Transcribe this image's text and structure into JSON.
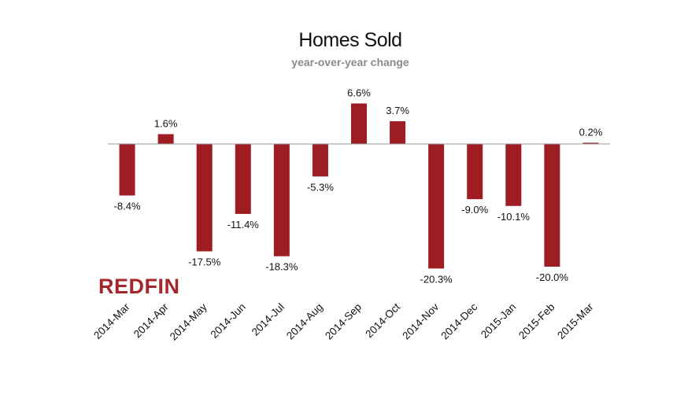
{
  "colors": {
    "bar": "#9e1d22",
    "brand": "#a4282b",
    "axis": "#999999"
  },
  "logo": {
    "text": "REDFIN",
    "icon": "redfin-wordmark"
  },
  "chart_data": {
    "type": "bar",
    "title": "Homes Sold",
    "subtitle": "year-over-year change",
    "xlabel": "",
    "ylabel": "",
    "ylim": [
      -25,
      10
    ],
    "unit": "%",
    "categories": [
      "2014-Mar",
      "2014-Apr",
      "2014-May",
      "2014-Jun",
      "2014-Jul",
      "2014-Aug",
      "2014-Sep",
      "2014-Oct",
      "2014-Nov",
      "2014-Dec",
      "2015-Jan",
      "2015-Feb",
      "2015-Mar"
    ],
    "values": [
      -8.4,
      1.6,
      -17.5,
      -11.4,
      -18.3,
      -5.3,
      6.6,
      3.7,
      -20.3,
      -9.0,
      -10.1,
      -20.0,
      0.2
    ],
    "labels": [
      "-8.4%",
      "1.6%",
      "-17.5%",
      "-11.4%",
      "-18.3%",
      "-5.3%",
      "6.6%",
      "3.7%",
      "-20.3%",
      "-9.0%",
      "-10.1%",
      "-20.0%",
      "0.2%"
    ],
    "grid": false,
    "legend": "none"
  }
}
